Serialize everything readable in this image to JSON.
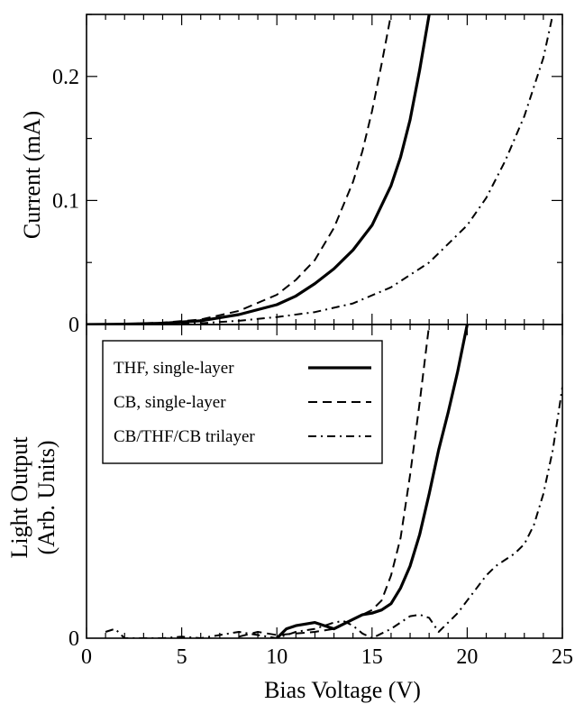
{
  "chart_data": [
    {
      "type": "line",
      "panel": "top",
      "title": "",
      "xlabel": "",
      "ylabel": "Current (mA)",
      "xlim": [
        0,
        25
      ],
      "ylim": [
        0,
        0.25
      ],
      "y_ticks": [
        0,
        0.1,
        0.2
      ],
      "y_tick_labels": [
        "0",
        "0.1",
        "0.2"
      ],
      "grid": false,
      "series": [
        {
          "name": "THF, single-layer",
          "style": "solid",
          "x": [
            0,
            2,
            4,
            6,
            8,
            10,
            11,
            12,
            13,
            14,
            15,
            16,
            16.5,
            17,
            17.5,
            18
          ],
          "y": [
            0,
            0.0003,
            0.001,
            0.003,
            0.008,
            0.016,
            0.023,
            0.033,
            0.045,
            0.06,
            0.08,
            0.112,
            0.135,
            0.165,
            0.205,
            0.25
          ]
        },
        {
          "name": "CB, single-layer",
          "style": "dashed",
          "x": [
            0,
            2,
            4,
            6,
            8,
            10,
            11,
            12,
            13,
            14,
            14.5,
            15,
            15.5,
            16
          ],
          "y": [
            0,
            0.0004,
            0.0015,
            0.004,
            0.011,
            0.024,
            0.036,
            0.052,
            0.078,
            0.115,
            0.14,
            0.172,
            0.21,
            0.25
          ]
        },
        {
          "name": "CB/THF/CB trilayer",
          "style": "dashdot",
          "x": [
            0,
            4,
            6,
            8,
            10,
            12,
            14,
            16,
            18,
            20,
            21,
            22,
            23,
            24,
            24.5
          ],
          "y": [
            0,
            0,
            0.001,
            0.003,
            0.006,
            0.01,
            0.017,
            0.03,
            0.05,
            0.08,
            0.102,
            0.132,
            0.168,
            0.215,
            0.25
          ]
        }
      ]
    },
    {
      "type": "line",
      "panel": "bottom",
      "title": "",
      "xlabel": "Bias Voltage (V)",
      "ylabel": "Light Output (Arb. Units)",
      "ylabel_lines": [
        "Light Output",
        "(Arb. Units)"
      ],
      "xlim": [
        0,
        25
      ],
      "ylim": [
        0,
        1
      ],
      "x_ticks": [
        0,
        5,
        10,
        15,
        20,
        25
      ],
      "x_tick_labels": [
        "0",
        "5",
        "10",
        "15",
        "20",
        "25"
      ],
      "y_ticks": [
        0
      ],
      "y_tick_labels": [
        "0"
      ],
      "grid": false,
      "legend": "top-left",
      "series": [
        {
          "name": "THF, single-layer",
          "style": "solid",
          "x": [
            10,
            10.5,
            11,
            11.5,
            12,
            12.5,
            13,
            13.5,
            14,
            14.5,
            15,
            15.5,
            16,
            16.5,
            17,
            17.5,
            18,
            18.5,
            19,
            19.5,
            20
          ],
          "y": [
            0,
            0.03,
            0.04,
            0.045,
            0.05,
            0.04,
            0.03,
            0.045,
            0.06,
            0.075,
            0.08,
            0.09,
            0.11,
            0.16,
            0.23,
            0.33,
            0.46,
            0.6,
            0.72,
            0.85,
            1.0
          ]
        },
        {
          "name": "CB, single-layer",
          "style": "dashed",
          "x": [
            8,
            9,
            10,
            11,
            12,
            13,
            13.5,
            14,
            14.5,
            15,
            15.5,
            16,
            16.5,
            17,
            17.5,
            18
          ],
          "y": [
            0.005,
            0.02,
            0.01,
            0.015,
            0.02,
            0.03,
            0.045,
            0.06,
            0.075,
            0.09,
            0.12,
            0.2,
            0.32,
            0.52,
            0.75,
            1.0
          ]
        },
        {
          "name": "CB/THF/CB trilayer",
          "style": "dashdot",
          "x": [
            1,
            1.5,
            2,
            3,
            4,
            5,
            6,
            7,
            8,
            9,
            10,
            11,
            12,
            12.5,
            13,
            13.5,
            14,
            14.5,
            15,
            16,
            17,
            17.5,
            18,
            18.5,
            19,
            19.5,
            20,
            20.5,
            21,
            21.5,
            22,
            22.5,
            23,
            23.5,
            24,
            24.5,
            25
          ],
          "y": [
            0.02,
            0.03,
            0,
            0,
            0,
            0.005,
            0,
            0.01,
            0.02,
            0.01,
            0,
            0.02,
            0.03,
            0.04,
            0.05,
            0.055,
            0.04,
            0.015,
            0,
            0.03,
            0.07,
            0.075,
            0.065,
            0.02,
            0.05,
            0.08,
            0.12,
            0.16,
            0.2,
            0.23,
            0.25,
            0.27,
            0.3,
            0.36,
            0.46,
            0.6,
            0.8
          ]
        }
      ]
    }
  ]
}
